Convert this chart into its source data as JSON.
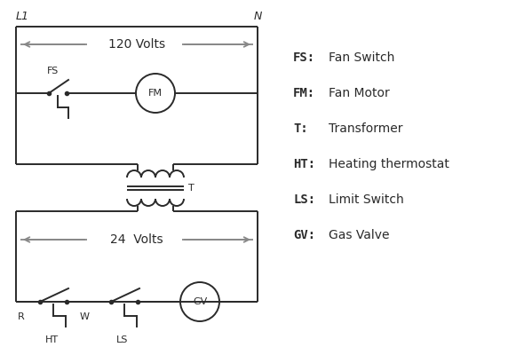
{
  "bg_color": "#ffffff",
  "line_color": "#2a2a2a",
  "arrow_color": "#888888",
  "legend": [
    [
      "FS:",
      "Fan Switch"
    ],
    [
      "FM:",
      "Fan Motor"
    ],
    [
      "T:",
      "Transformer"
    ],
    [
      "HT:",
      "Heating thermostat"
    ],
    [
      "LS:",
      "Limit Switch"
    ],
    [
      "GV:",
      "Gas Valve"
    ]
  ],
  "L1_label": "L1",
  "N_label": "N",
  "volts120": "120 Volts",
  "volts24": "24  Volts",
  "T_label": "T",
  "R_label": "R",
  "W_label": "W",
  "HT_label": "HT",
  "LS_label": "LS",
  "FS_label": "FS",
  "FM_label": "FM",
  "GV_label": "GV"
}
